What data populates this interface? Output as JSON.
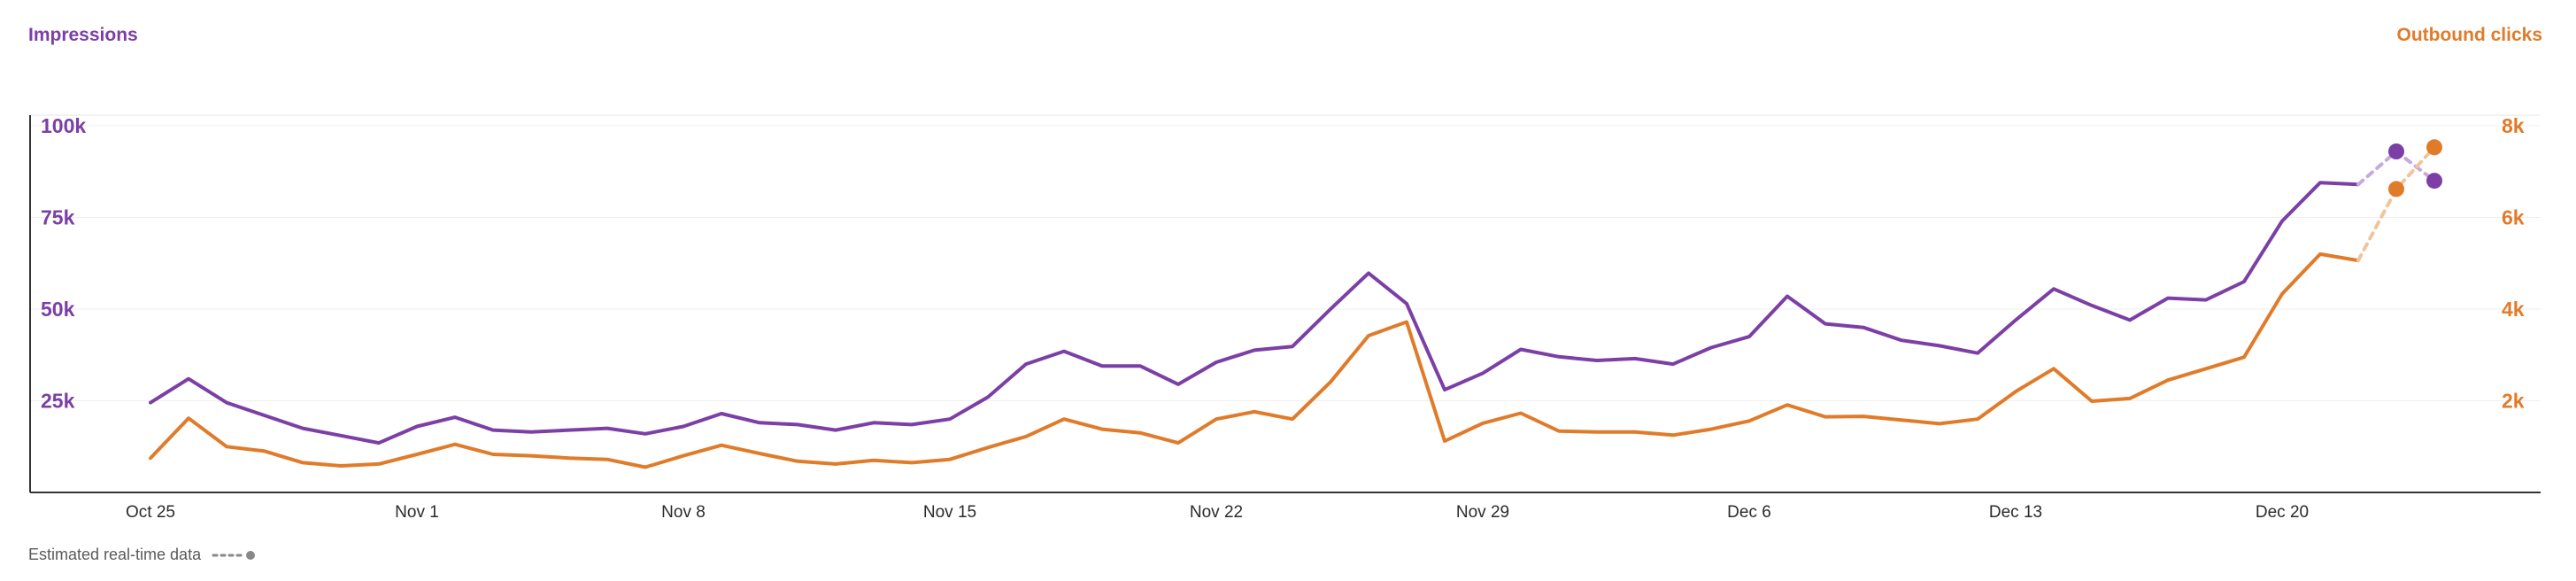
{
  "titles": {
    "left": "Impressions",
    "right": "Outbound clicks"
  },
  "legend": {
    "label": "Estimated real-time data"
  },
  "colors": {
    "impressions": "#7b3fa6",
    "clicks": "#e07b2a",
    "impressions_estimated": "#c7a9de",
    "clicks_estimated": "#f2c49b",
    "legend_icon": "#888888"
  },
  "chart_data": {
    "type": "line",
    "x": [
      "Oct 23",
      "Oct 24",
      "Oct 25",
      "Oct 26",
      "Oct 27",
      "Oct 28",
      "Oct 29",
      "Oct 30",
      "Oct 31",
      "Nov 1",
      "Nov 2",
      "Nov 3",
      "Nov 4",
      "Nov 5",
      "Nov 6",
      "Nov 7",
      "Nov 8",
      "Nov 9",
      "Nov 10",
      "Nov 11",
      "Nov 12",
      "Nov 13",
      "Nov 14",
      "Nov 15",
      "Nov 16",
      "Nov 17",
      "Nov 18",
      "Nov 19",
      "Nov 20",
      "Nov 21",
      "Nov 22",
      "Nov 23",
      "Nov 24",
      "Nov 25",
      "Nov 26",
      "Nov 27",
      "Nov 28",
      "Nov 29",
      "Nov 30",
      "Dec 1",
      "Dec 2",
      "Dec 3",
      "Dec 4",
      "Dec 5",
      "Dec 6",
      "Dec 7",
      "Dec 8",
      "Dec 9",
      "Dec 10",
      "Dec 11",
      "Dec 12",
      "Dec 13",
      "Dec 14",
      "Dec 15",
      "Dec 16",
      "Dec 17",
      "Dec 18",
      "Dec 19",
      "Dec 20",
      "Dec 21",
      "Dec 22",
      "Dec 23",
      "Dec 24"
    ],
    "x_ticks": [
      "Oct 25",
      "Nov 1",
      "Nov 8",
      "Nov 15",
      "Nov 22",
      "Nov 29",
      "Dec 6",
      "Dec 13",
      "Dec 20"
    ],
    "left_axis": {
      "ticks": [
        "25k",
        "50k",
        "75k",
        "100k"
      ],
      "tick_values": [
        25000,
        50000,
        75000,
        100000
      ],
      "range": [
        0,
        100000
      ]
    },
    "right_axis": {
      "ticks": [
        "2k",
        "4k",
        "6k",
        "8k"
      ],
      "tick_values": [
        2000,
        4000,
        6000,
        8000
      ],
      "range": [
        0,
        8000
      ]
    },
    "series": [
      {
        "name": "Impressions",
        "axis": "left",
        "values": [
          null,
          null,
          24500,
          31000,
          24500,
          21000,
          17500,
          15500,
          13500,
          18000,
          20500,
          17000,
          16500,
          17000,
          17500,
          16000,
          18000,
          21500,
          19000,
          18500,
          17000,
          19000,
          18500,
          20000,
          26000,
          35000,
          38500,
          34500,
          34500,
          29500,
          35500,
          38800,
          39800,
          50000,
          59800,
          51500,
          28000,
          32500,
          39000,
          37000,
          36000,
          36500,
          35000,
          39500,
          42500,
          53500,
          46000,
          45000,
          41500,
          40000,
          38000,
          47000,
          55500,
          51000,
          47000,
          53000,
          52500,
          57500,
          74000,
          84500,
          84000,
          null,
          null
        ],
        "estimated": [
          {
            "x": "Dec 22",
            "y": 84000
          },
          {
            "x": "Dec 23",
            "y": 93000
          },
          {
            "x": "Dec 24",
            "y": 85000
          }
        ]
      },
      {
        "name": "Outbound clicks",
        "axis": "right",
        "values": [
          null,
          null,
          750,
          1620,
          1000,
          900,
          650,
          580,
          620,
          830,
          1050,
          830,
          800,
          750,
          720,
          550,
          800,
          1030,
          850,
          680,
          620,
          700,
          650,
          720,
          980,
          1220,
          1600,
          1380,
          1300,
          1080,
          1600,
          1760,
          1600,
          2410,
          3420,
          3720,
          1120,
          1510,
          1730,
          1340,
          1320,
          1320,
          1250,
          1380,
          1560,
          1910,
          1650,
          1660,
          1580,
          1500,
          1600,
          2200,
          2700,
          1990,
          2050,
          2450,
          2700,
          2950,
          4330,
          5200,
          5060,
          null,
          null
        ],
        "estimated": [
          {
            "x": "Dec 22",
            "y": 5060
          },
          {
            "x": "Dec 23",
            "y": 6620
          },
          {
            "x": "Dec 24",
            "y": 7530
          }
        ]
      }
    ],
    "grid": true,
    "legend_placement": "bottom-left"
  }
}
